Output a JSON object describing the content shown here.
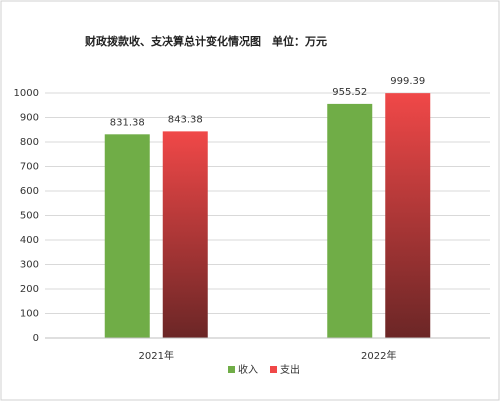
{
  "chart_data": {
    "type": "bar",
    "title": "财政拨款收、支决算总计变化情况图",
    "unit": "单位：万元",
    "categories": [
      "2021年",
      "2022年"
    ],
    "series": [
      {
        "name": "收入",
        "color": "#70ad47",
        "values": [
          831.38,
          955.52
        ]
      },
      {
        "name": "支出",
        "color": "#f04848",
        "values": [
          843.38,
          999.39
        ]
      }
    ],
    "ylim": [
      0,
      1000
    ],
    "yticks": [
      0,
      100,
      200,
      300,
      400,
      500,
      600,
      700,
      800,
      900,
      1000
    ],
    "grid": true,
    "legend": "bottom"
  }
}
